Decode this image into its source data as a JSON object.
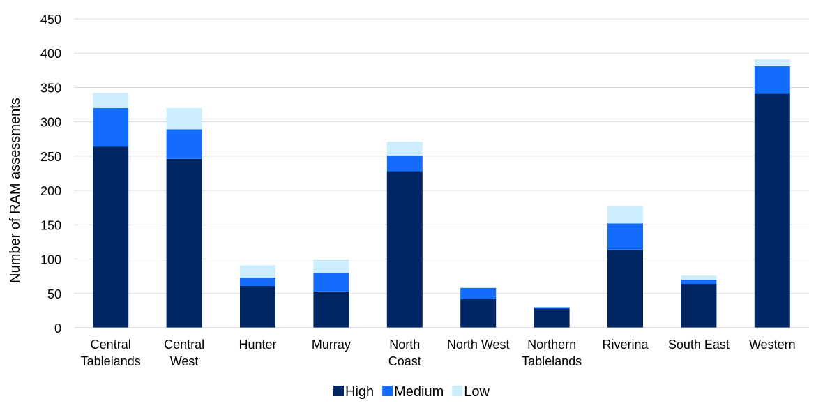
{
  "chart_data": {
    "type": "bar",
    "stacked": true,
    "title": "",
    "xlabel": "",
    "ylabel": "Number of RAM assessments",
    "ylim": [
      0,
      450
    ],
    "yticks": [
      0,
      50,
      100,
      150,
      200,
      250,
      300,
      350,
      400,
      450
    ],
    "grid": true,
    "legend_position": "bottom",
    "categories": [
      [
        "Central",
        "Tablelands"
      ],
      [
        "Central",
        "West"
      ],
      [
        "Hunter"
      ],
      [
        "Murray"
      ],
      [
        "North",
        "Coast"
      ],
      [
        "North West"
      ],
      [
        "Northern",
        "Tablelands"
      ],
      [
        "Riverina"
      ],
      [
        "South East"
      ],
      [
        "Western"
      ]
    ],
    "series": [
      {
        "name": "High",
        "color": "#002664",
        "values": [
          264,
          246,
          61,
          53,
          228,
          42,
          28,
          114,
          64,
          341
        ]
      },
      {
        "name": "Medium",
        "color": "#146CFD",
        "values": [
          56,
          43,
          12,
          27,
          23,
          16,
          2,
          38,
          6,
          40
        ]
      },
      {
        "name": "Low",
        "color": "#CBEDFD",
        "values": [
          22,
          31,
          18,
          19,
          20,
          1,
          0,
          25,
          6,
          10
        ]
      }
    ]
  }
}
